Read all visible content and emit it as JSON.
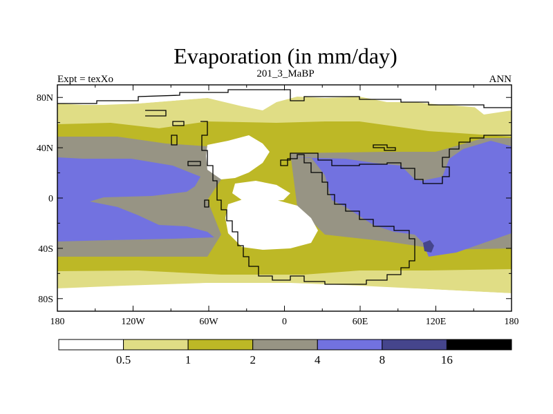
{
  "chart_data": {
    "type": "heatmap",
    "title": "Evaporation (in mm/day)",
    "left_string": "Expt = texXo",
    "center_string": "201_3_MaBP",
    "right_string": "ANN",
    "x_axis": {
      "range": [
        -180,
        180
      ],
      "ticks": [
        -180,
        -120,
        -60,
        0,
        60,
        120,
        180
      ],
      "tick_labels": [
        "180",
        "120W",
        "60W",
        "0",
        "60E",
        "120E",
        "180"
      ]
    },
    "y_axis": {
      "range": [
        -90,
        90
      ],
      "ticks": [
        80,
        40,
        0,
        -40,
        -80
      ],
      "tick_labels": [
        "80N",
        "40N",
        "0",
        "40S",
        "80S"
      ]
    },
    "colorbar": {
      "levels": [
        0.5,
        1,
        2,
        4,
        8,
        16
      ],
      "level_labels": [
        "0.5",
        "1",
        "2",
        "4",
        "8",
        "16"
      ],
      "colors": [
        "#ffffff",
        "#e0dd85",
        "#bdb826",
        "#979484",
        "#7272e0",
        "#45458c",
        "#000000"
      ]
    }
  }
}
